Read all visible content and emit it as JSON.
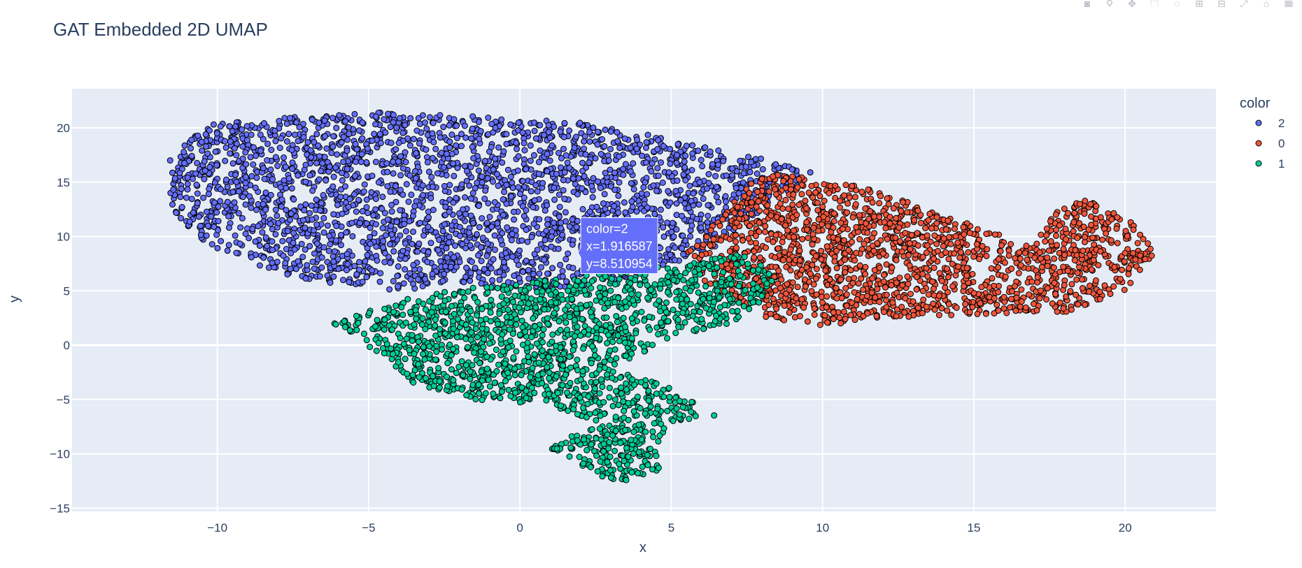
{
  "chart_data": {
    "type": "scatter",
    "title": "GAT Embedded 2D UMAP",
    "xlabel": "x",
    "ylabel": "y",
    "xlim": [
      -14.8,
      23.0
    ],
    "ylim": [
      -15.3,
      23.6
    ],
    "x_ticks": [
      -10,
      -5,
      0,
      5,
      10,
      15,
      20
    ],
    "y_ticks": [
      -15,
      -10,
      -5,
      0,
      5,
      10,
      15,
      20
    ],
    "x_tick_labels": [
      "−10",
      "−5",
      "0",
      "5",
      "10",
      "15",
      "20"
    ],
    "y_tick_labels": [
      "−15",
      "−10",
      "−5",
      "0",
      "5",
      "10",
      "15",
      "20"
    ],
    "grid": true,
    "legend": {
      "title": "color",
      "placement": "top-right",
      "entries": [
        "2",
        "0",
        "1"
      ]
    },
    "series": [
      {
        "name": "2",
        "color": "#636efa",
        "approx_region": {
          "x_range": [
            -12.0,
            9.8
          ],
          "y_range": [
            2.0,
            21.6
          ],
          "outline": [
            [
              -11.8,
              16.5
            ],
            [
              -10.5,
              20.3
            ],
            [
              -7.5,
              21.0
            ],
            [
              -4.5,
              21.5
            ],
            [
              -1.0,
              21.0
            ],
            [
              2.0,
              20.5
            ],
            [
              5.0,
              19.0
            ],
            [
              7.5,
              17.5
            ],
            [
              9.8,
              15.8
            ],
            [
              8.0,
              12.5
            ],
            [
              6.5,
              9.0
            ],
            [
              3.5,
              6.0
            ],
            [
              0.5,
              5.0
            ],
            [
              -2.0,
              5.5
            ],
            [
              -4.5,
              5.0
            ],
            [
              -7.0,
              6.0
            ],
            [
              -8.5,
              7.0
            ],
            [
              -10.5,
              9.5
            ],
            [
              -11.5,
              12.5
            ]
          ]
        }
      },
      {
        "name": "0",
        "color": "#ef553b",
        "approx_region": {
          "x_range": [
            5.2,
            21.0
          ],
          "y_range": [
            1.5,
            15.9
          ],
          "outline": [
            [
              8.0,
              16.0
            ],
            [
              11.5,
              14.5
            ],
            [
              14.5,
              11.5
            ],
            [
              17.0,
              9.0
            ],
            [
              17.5,
              12.0
            ],
            [
              18.5,
              13.5
            ],
            [
              20.0,
              12.0
            ],
            [
              21.0,
              8.5
            ],
            [
              20.0,
              5.0
            ],
            [
              18.0,
              3.0
            ],
            [
              15.0,
              2.8
            ],
            [
              12.0,
              2.5
            ],
            [
              10.0,
              1.8
            ],
            [
              8.0,
              2.5
            ],
            [
              6.0,
              6.0
            ],
            [
              5.5,
              8.5
            ],
            [
              6.5,
              11.5
            ]
          ]
        }
      },
      {
        "name": "1",
        "color": "#00cc96",
        "approx_region": {
          "x_range": [
            -6.5,
            8.5
          ],
          "y_range": [
            -12.8,
            8.8
          ],
          "outline": [
            [
              -6.2,
              2.0
            ],
            [
              -3.5,
              4.5
            ],
            [
              -1.0,
              5.5
            ],
            [
              2.5,
              6.5
            ],
            [
              5.5,
              7.5
            ],
            [
              7.5,
              8.5
            ],
            [
              8.5,
              6.0
            ],
            [
              7.5,
              2.5
            ],
            [
              5.0,
              0.5
            ],
            [
              3.0,
              -2.0
            ],
            [
              5.0,
              -4.0
            ],
            [
              6.5,
              -6.5
            ],
            [
              5.0,
              -7.0
            ],
            [
              4.5,
              -10.0
            ],
            [
              4.8,
              -12.5
            ],
            [
              3.0,
              -12.7
            ],
            [
              1.0,
              -9.5
            ],
            [
              2.5,
              -7.0
            ],
            [
              1.0,
              -5.5
            ],
            [
              -1.5,
              -5.0
            ],
            [
              -3.5,
              -3.5
            ],
            [
              -4.5,
              -1.0
            ]
          ]
        }
      }
    ],
    "hover": {
      "lines": [
        "color=2",
        "x=1.916587",
        "y=8.510954"
      ],
      "point": [
        1.916587,
        8.510954
      ],
      "color": "#636efa"
    }
  },
  "modebar": {
    "buttons": [
      "camera-icon",
      "zoom-icon",
      "pan-icon",
      "box-select-icon",
      "lasso-icon",
      "zoom-in-icon",
      "zoom-out-icon",
      "autoscale-icon",
      "reset-axes-icon",
      "plotly-logo-icon"
    ]
  },
  "colors": {
    "plot_bg": "#e5ecf6",
    "grid": "#ffffff",
    "text": "#2a3f5f",
    "marker_line": "#000000"
  }
}
